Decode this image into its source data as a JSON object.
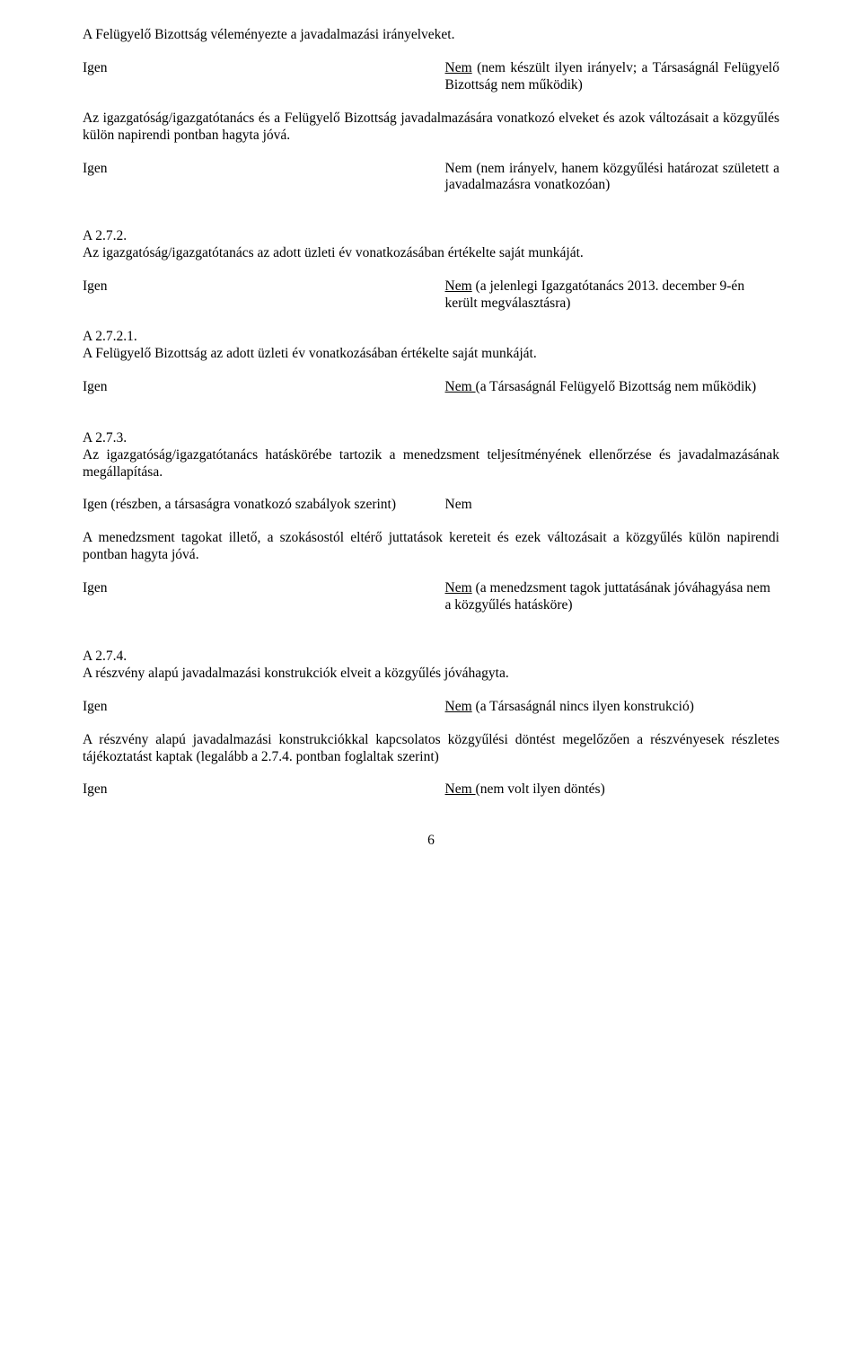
{
  "doc": {
    "page_number": "6",
    "intro": {
      "p1": "A Felügyelő Bizottság véleményezte a javadalmazási irányelveket.",
      "igen": "Igen",
      "nem_pre": "Nem",
      "nem_rest": " (nem készült ilyen irányelv; a Társaságnál Felügyelő Bizottság nem működik)",
      "p2": "Az igazgatóság/igazgatótanács és a Felügyelő Bizottság javadalmazására vonatkozó elveket és azok változásait a közgyűlés külön napirendi pontban hagyta jóvá.",
      "igen2": "Igen",
      "nem2": "Nem (nem irányelv, hanem közgyűlési határozat született a javadalmazásra vonatkozóan)"
    },
    "a272": {
      "heading": "A 2.7.2.",
      "p1": "Az igazgatóság/igazgatótanács az adott üzleti év vonatkozásában értékelte saját munkáját.",
      "igen1": "Igen",
      "nem1_pre": "Nem",
      "nem1_rest": " (a jelenlegi Igazgatótanács 2013. december 9-én került megválasztásra)",
      "sub_heading": "A 2.7.2.1.",
      "p2": "A Felügyelő Bizottság az adott üzleti év vonatkozásában értékelte saját munkáját.",
      "igen2": "Igen",
      "nem2_pre": "Nem ",
      "nem2_rest": "(a Társaságnál Felügyelő Bizottság nem működik)"
    },
    "a273": {
      "heading": "A 2.7.3.",
      "p1": "Az igazgatóság/igazgatótanács hatáskörébe tartozik a menedzsment teljesítményének ellenőrzése és javadalmazásának megállapítása.",
      "igen1": "Igen (részben, a társaságra vonatkozó szabályok szerint)",
      "nem1": "Nem",
      "p2": "A menedzsment tagokat illető, a szokásostól eltérő juttatások kereteit és ezek változásait a közgyűlés külön napirendi pontban hagyta jóvá.",
      "igen2": "Igen",
      "nem2_pre": "Nem",
      "nem2_rest": " (a menedzsment tagok juttatásának jóváhagyása nem a közgyűlés hatásköre)"
    },
    "a274": {
      "heading": "A 2.7.4.",
      "p1": "A részvény alapú javadalmazási konstrukciók elveit a közgyűlés jóváhagyta.",
      "igen1": "Igen",
      "nem1_pre": "Nem",
      "nem1_rest": " (a Társaságnál nincs ilyen konstrukció)",
      "p2": "A részvény alapú javadalmazási konstrukciókkal kapcsolatos közgyűlési döntést megelőzően a részvényesek részletes tájékoztatást kaptak (legalább a 2.7.4. pontban foglaltak szerint)",
      "igen2": "Igen",
      "nem2_pre": "Nem ",
      "nem2_rest": "(nem volt ilyen döntés)"
    }
  }
}
